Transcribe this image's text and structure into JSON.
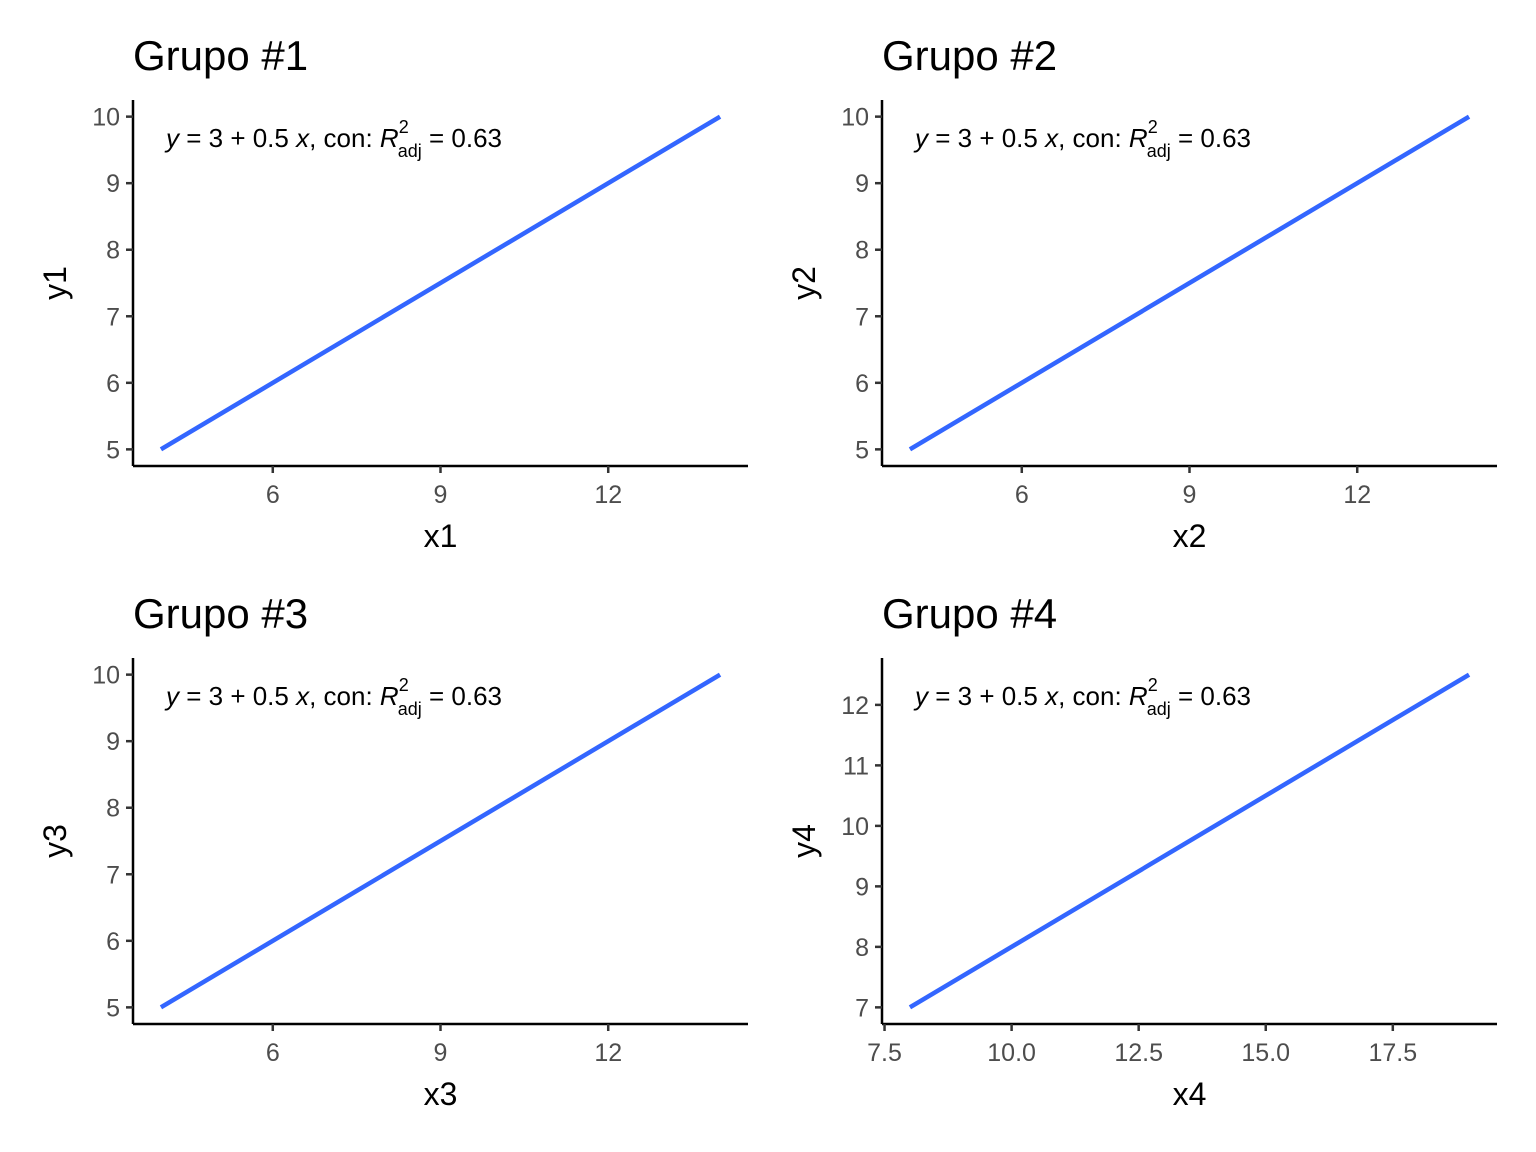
{
  "chart_data": [
    {
      "type": "line",
      "title": "Grupo #1",
      "xlabel": "x1",
      "ylabel": "y1",
      "x": [
        4,
        14
      ],
      "y": [
        5,
        10
      ],
      "xlim": [
        3.5,
        14.5
      ],
      "ylim": [
        4.75,
        10.25
      ],
      "xticks": [
        6,
        9,
        12
      ],
      "yticks": [
        5,
        6,
        7,
        8,
        9,
        10
      ],
      "annotation": {
        "eq_y": "y",
        "eq_mid": " = 3 + 0.5 ",
        "eq_x": "x",
        "eq_con": ", con: ",
        "eq_R": "R",
        "eq_sup": "2",
        "eq_sub": "adj",
        "eq_val": " = 0.63"
      },
      "grid": false,
      "line_color": "#3366FF"
    },
    {
      "type": "line",
      "title": "Grupo #2",
      "xlabel": "x2",
      "ylabel": "y2",
      "x": [
        4,
        14
      ],
      "y": [
        5,
        10
      ],
      "xlim": [
        3.5,
        14.5
      ],
      "ylim": [
        4.75,
        10.25
      ],
      "xticks": [
        6,
        9,
        12
      ],
      "yticks": [
        5,
        6,
        7,
        8,
        9,
        10
      ],
      "annotation": {
        "eq_y": "y",
        "eq_mid": " = 3 + 0.5 ",
        "eq_x": "x",
        "eq_con": ", con: ",
        "eq_R": "R",
        "eq_sup": "2",
        "eq_sub": "adj",
        "eq_val": " = 0.63"
      },
      "grid": false,
      "line_color": "#3366FF"
    },
    {
      "type": "line",
      "title": "Grupo #3",
      "xlabel": "x3",
      "ylabel": "y3",
      "x": [
        4,
        14
      ],
      "y": [
        5,
        10
      ],
      "xlim": [
        3.5,
        14.5
      ],
      "ylim": [
        4.75,
        10.25
      ],
      "xticks": [
        6,
        9,
        12
      ],
      "yticks": [
        5,
        6,
        7,
        8,
        9,
        10
      ],
      "annotation": {
        "eq_y": "y",
        "eq_mid": " = 3 + 0.5 ",
        "eq_x": "x",
        "eq_con": ", con: ",
        "eq_R": "R",
        "eq_sup": "2",
        "eq_sub": "adj",
        "eq_val": " = 0.63"
      },
      "grid": false,
      "line_color": "#3366FF"
    },
    {
      "type": "line",
      "title": "Grupo #4",
      "xlabel": "x4",
      "ylabel": "y4",
      "x": [
        8,
        19
      ],
      "y": [
        7,
        12.5
      ],
      "xlim": [
        7.45,
        19.55
      ],
      "ylim": [
        6.725,
        12.775
      ],
      "xticks": [
        7.5,
        10.0,
        12.5,
        15.0,
        17.5
      ],
      "xtick_labels": [
        "7.5",
        "10.0",
        "12.5",
        "15.0",
        "17.5"
      ],
      "yticks": [
        7,
        8,
        9,
        10,
        11,
        12
      ],
      "annotation": {
        "eq_y": "y",
        "eq_mid": " = 3 + 0.5 ",
        "eq_x": "x",
        "eq_con": ", con: ",
        "eq_R": "R",
        "eq_sup": "2",
        "eq_sub": "adj",
        "eq_val": " = 0.63"
      },
      "grid": false,
      "line_color": "#3366FF"
    }
  ]
}
